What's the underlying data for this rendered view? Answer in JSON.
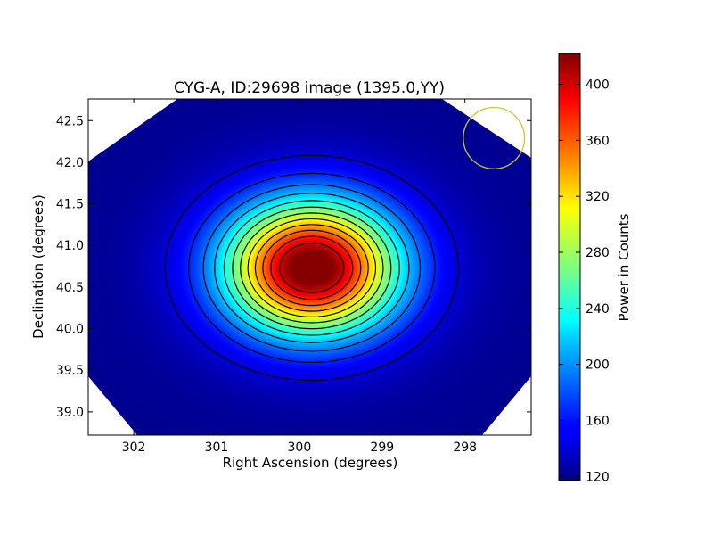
{
  "chart_data": {
    "type": "heatmap",
    "title": "CYG-A, ID:29698 image (1395.0,YY)",
    "xlabel": "Right Ascension (degrees)",
    "ylabel": "Declination (degrees)",
    "xlim": [
      302.55,
      297.2
    ],
    "ylim": [
      38.72,
      42.76
    ],
    "xticks": [
      302,
      301,
      300,
      299,
      298
    ],
    "xtick_labels": [
      "302",
      "301",
      "300",
      "299",
      "298"
    ],
    "yticks": [
      39.0,
      39.5,
      40.0,
      40.5,
      41.0,
      41.5,
      42.0,
      42.5
    ],
    "ytick_labels": [
      "39.0",
      "39.5",
      "40.0",
      "40.5",
      "41.0",
      "41.5",
      "42.0",
      "42.5"
    ],
    "colorbar": {
      "label": "Power in Counts",
      "range": [
        117,
        422
      ],
      "ticks": [
        120,
        160,
        200,
        240,
        280,
        320,
        360,
        400
      ],
      "tick_labels": [
        "120",
        "160",
        "200",
        "240",
        "280",
        "320",
        "360",
        "400"
      ],
      "colormap": "jet"
    },
    "source": {
      "ra": 299.85,
      "dec": 40.73,
      "peak": 420,
      "background": 120,
      "sigma_ra_deg": 0.72,
      "sigma_dec_deg": 0.55
    },
    "contours": {
      "color": "#000000",
      "count": 12
    },
    "beam": {
      "ra": 297.65,
      "dec": 42.29,
      "radius_deg": 0.37,
      "color": "#c8c832"
    },
    "masked_corners": true
  }
}
